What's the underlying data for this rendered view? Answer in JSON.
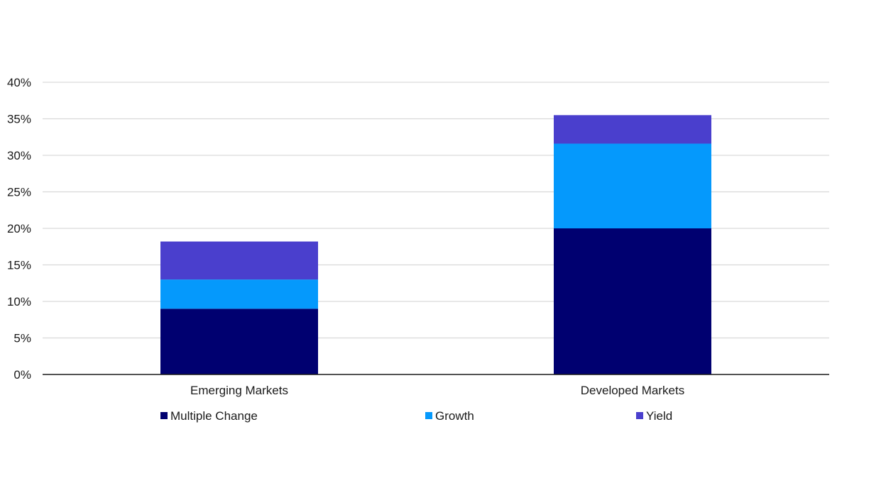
{
  "chart_data": {
    "type": "bar",
    "stacked": true,
    "categories": [
      "Emerging Markets",
      "Developed Markets"
    ],
    "series": [
      {
        "name": "Multiple Change",
        "color": "#000070",
        "values": [
          9.0,
          20.0
        ]
      },
      {
        "name": "Growth",
        "color": "#0599fc",
        "values": [
          4.0,
          11.6
        ]
      },
      {
        "name": "Yield",
        "color": "#4a3fcd",
        "values": [
          5.2,
          3.9
        ]
      }
    ],
    "ylim": [
      0,
      40
    ],
    "yticks": [
      0,
      5,
      10,
      15,
      20,
      25,
      30,
      35,
      40
    ],
    "ytick_labels": [
      "0%",
      "5%",
      "10%",
      "15%",
      "20%",
      "25%",
      "30%",
      "35%",
      "40%"
    ],
    "grid": true,
    "legend_position": "bottom",
    "title": "",
    "xlabel": "",
    "ylabel": ""
  },
  "colors": {
    "grid": "#d9d9d9",
    "axis": "#1a1a1a"
  }
}
